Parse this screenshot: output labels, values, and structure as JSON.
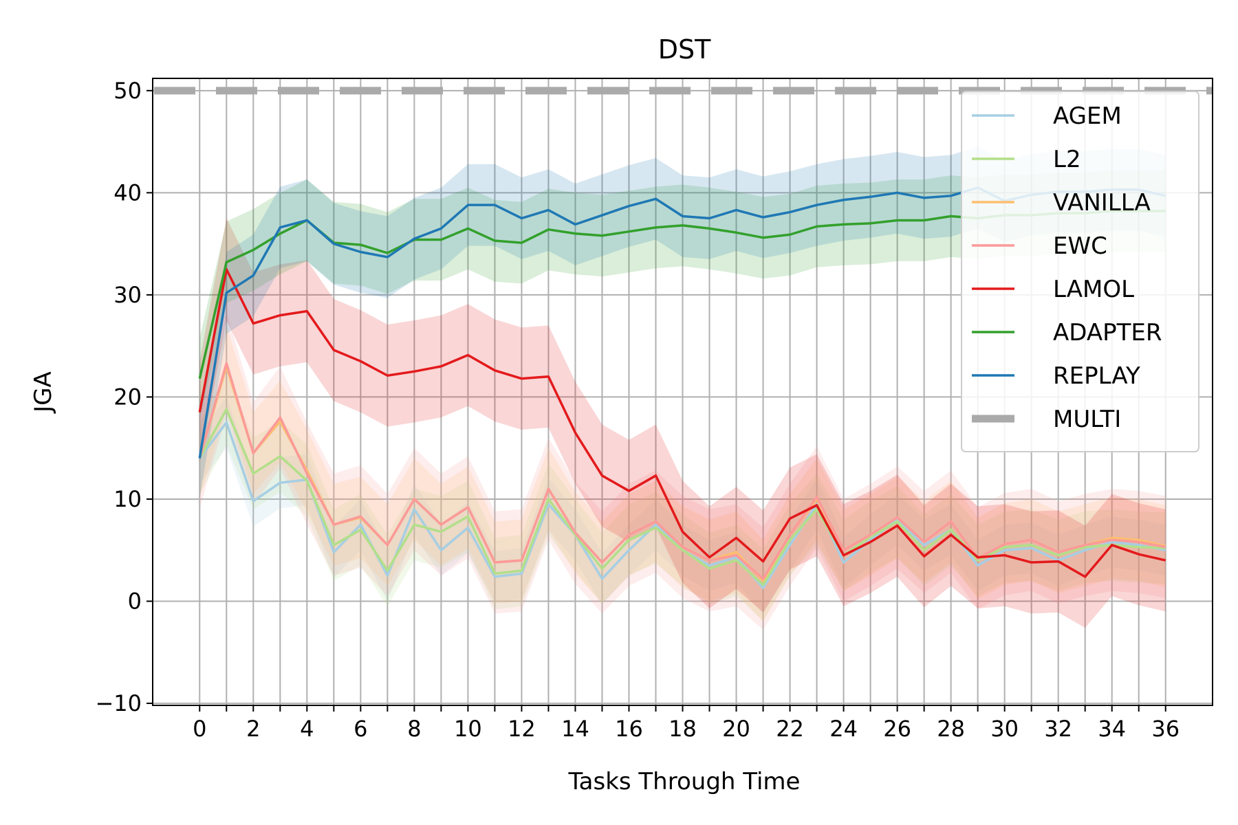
{
  "chart_data": {
    "type": "line",
    "title": "DST",
    "xlabel": "Tasks Through Time",
    "ylabel": "JGA",
    "xlim": [
      -1.75,
      37.75
    ],
    "ylim": [
      -10.2,
      51.2
    ],
    "xticks_labeled": [
      "0",
      "2",
      "4",
      "6",
      "8",
      "10",
      "12",
      "14",
      "16",
      "18",
      "20",
      "22",
      "24",
      "26",
      "28",
      "30",
      "32",
      "34",
      "36"
    ],
    "xticks_labeled_values": [
      0,
      2,
      4,
      6,
      8,
      10,
      12,
      14,
      16,
      18,
      20,
      22,
      24,
      26,
      28,
      30,
      32,
      34,
      36
    ],
    "yticks": [
      "−10",
      "0",
      "10",
      "20",
      "30",
      "40",
      "50"
    ],
    "yticks_values": [
      -10,
      0,
      10,
      20,
      30,
      40,
      50
    ],
    "grid": true,
    "legend_position": "top-right",
    "x": [
      0,
      1,
      2,
      3,
      4,
      5,
      6,
      7,
      8,
      9,
      10,
      11,
      12,
      13,
      14,
      15,
      16,
      17,
      18,
      19,
      20,
      21,
      22,
      23,
      24,
      25,
      26,
      27,
      28,
      29,
      30,
      31,
      32,
      33,
      34,
      35,
      36
    ],
    "series": [
      {
        "name": "AGEM",
        "color": "#a6cee3",
        "band": 2.5,
        "values": [
          14,
          17.5,
          9.8,
          11.6,
          11.9,
          4.8,
          7.5,
          2.5,
          9,
          5,
          7.2,
          2.4,
          2.7,
          9.5,
          6.5,
          2.2,
          5,
          7.5,
          5,
          3.5,
          4.3,
          1.3,
          5.5,
          9.5,
          3.8,
          6,
          8,
          5.5,
          7,
          3.5,
          5,
          5.2,
          4,
          5,
          5.8,
          5.5,
          5
        ]
      },
      {
        "name": "L2",
        "color": "#b2df8a",
        "band": 3.5,
        "values": [
          14,
          18.8,
          12.5,
          14.2,
          11.8,
          5.5,
          7,
          3,
          7.5,
          6.8,
          8.3,
          2.7,
          3,
          10,
          6.5,
          3.2,
          6,
          7.2,
          5,
          3.2,
          4,
          1.6,
          6,
          9,
          4.5,
          6.3,
          7.8,
          5,
          7,
          4,
          5.3,
          5.5,
          4.5,
          5.3,
          5.5,
          5.3,
          5.2
        ]
      },
      {
        "name": "VANILLA",
        "color": "#fdbf6f",
        "band": 4,
        "values": [
          14,
          23,
          14.5,
          17.6,
          12.8,
          7.5,
          8.2,
          5.5,
          10,
          7.5,
          9.2,
          3.8,
          4,
          11,
          6.7,
          3.8,
          6.5,
          7.8,
          5.3,
          4,
          4.8,
          2,
          6.5,
          10,
          5,
          6.5,
          8.2,
          5.8,
          7.8,
          4.2,
          5.6,
          6,
          4.8,
          5.5,
          6.2,
          6,
          5.4
        ]
      },
      {
        "name": "EWC",
        "color": "#fb9a99",
        "band": 5,
        "values": [
          14,
          23.3,
          14.5,
          18,
          12.5,
          7.5,
          8.3,
          5.5,
          10,
          7.5,
          9.2,
          3.8,
          4,
          11,
          6.7,
          3.8,
          6.5,
          7.8,
          5.3,
          4,
          4.5,
          2.2,
          6.5,
          10.2,
          5,
          6.5,
          8.2,
          5.8,
          7.8,
          4.2,
          5.6,
          6,
          4.8,
          5.5,
          6,
          5.8,
          5.3
        ]
      },
      {
        "name": "LAMOL",
        "color": "#e31a1c",
        "band": 5,
        "values": [
          18.5,
          32.5,
          27.2,
          28,
          28.4,
          24.6,
          23.5,
          22.1,
          22.5,
          23,
          24.1,
          22.6,
          21.8,
          22,
          16.5,
          12.3,
          10.8,
          12.3,
          6.8,
          4.3,
          6.2,
          3.9,
          8.1,
          9.4,
          4.5,
          5.8,
          7.4,
          4.4,
          6.5,
          4.3,
          4.5,
          3.8,
          3.9,
          2.4,
          5.5,
          4.6,
          4
        ]
      },
      {
        "name": "ADAPTER",
        "color": "#33a02c",
        "band": 4,
        "values": [
          21.8,
          33.2,
          34.4,
          36,
          37.3,
          35.1,
          34.9,
          34.1,
          35.4,
          35.4,
          36.5,
          35.3,
          35.1,
          36.4,
          36,
          35.8,
          36.2,
          36.6,
          36.8,
          36.5,
          36.1,
          35.6,
          35.9,
          36.7,
          36.9,
          37,
          37.3,
          37.3,
          37.7,
          37.5,
          37.8,
          37.8,
          38,
          38,
          38.2,
          38.2,
          38.2
        ]
      },
      {
        "name": "REPLAY",
        "color": "#1f78b4",
        "band": 4,
        "values": [
          14,
          30.2,
          31.9,
          36.6,
          37.3,
          35,
          34.2,
          33.7,
          35.5,
          36.5,
          38.8,
          38.8,
          37.5,
          38.3,
          36.9,
          37.8,
          38.7,
          39.4,
          37.7,
          37.5,
          38.3,
          37.6,
          38.1,
          38.8,
          39.3,
          39.6,
          40,
          39.5,
          39.7,
          40.5,
          39.2,
          39.8,
          40.1,
          40.1,
          40.3,
          40.3,
          39.7
        ]
      }
    ],
    "reference_line": {
      "name": "MULTI",
      "y": 50,
      "color": "#aaaaaa"
    }
  }
}
